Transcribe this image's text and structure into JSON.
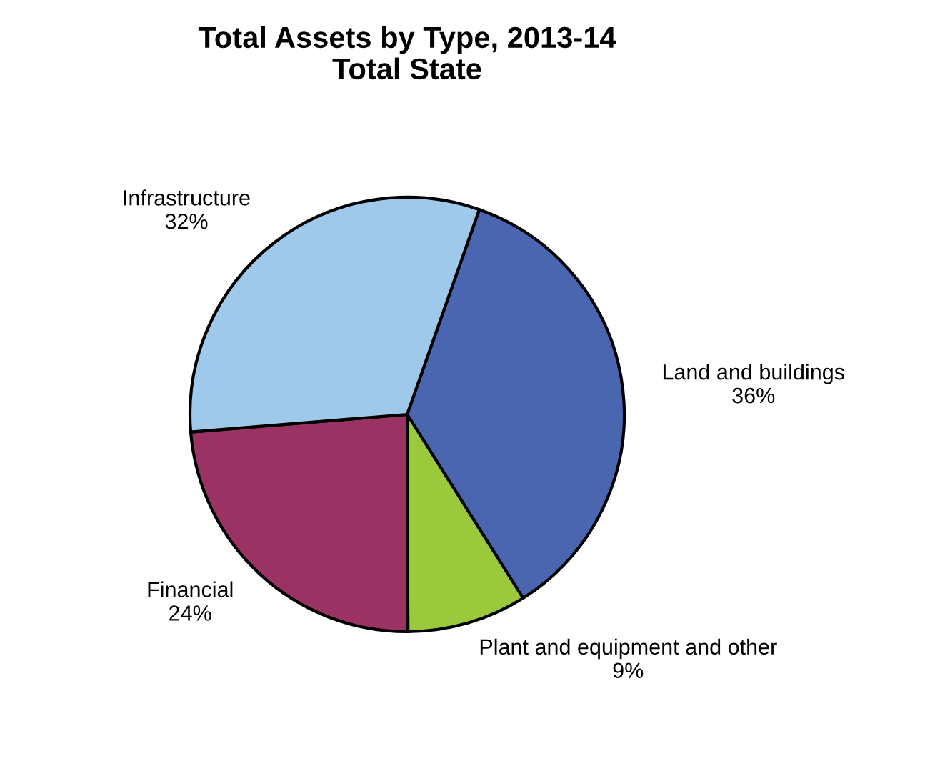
{
  "chart_data": {
    "type": "pie",
    "title": "Total Assets by Type, 2013-14",
    "subtitle": "Total State",
    "categories": [
      "Land and buildings",
      "Plant and equipment and other",
      "Financial",
      "Infrastructure"
    ],
    "values": [
      36,
      9,
      24,
      32
    ],
    "value_labels": [
      "36%",
      "9%",
      "24%",
      "32%"
    ],
    "colors": [
      "#4a66b0",
      "#9ac93c",
      "#9a3363",
      "#9fc9ea"
    ]
  }
}
